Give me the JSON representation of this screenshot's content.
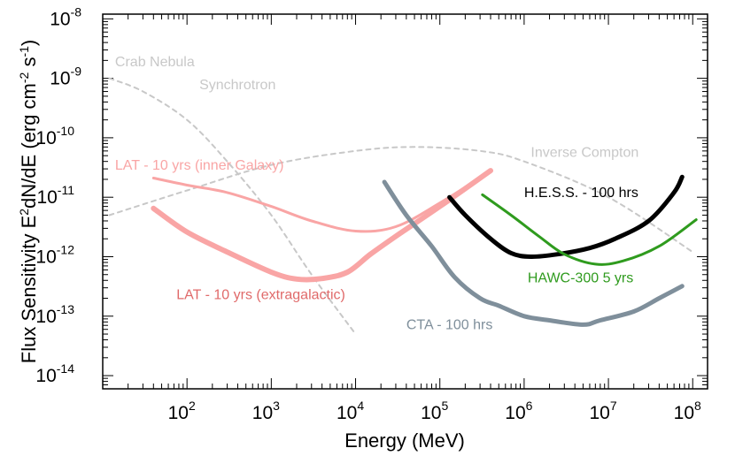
{
  "chart_data": {
    "type": "line",
    "title": "",
    "xlabel": "Energy (MeV)",
    "ylabel": {
      "base": "Flux Sensitivity E",
      "sup": "2",
      "rest": "dN/dE (erg cm",
      "sup2": "-2",
      "rest2": " s",
      "sup3": "-1",
      "end": ")"
    },
    "x_scale": "log",
    "y_scale": "log",
    "xlim": [
      10,
      150000000
    ],
    "ylim": [
      6e-15,
      1.2e-08
    ],
    "x_ticks": [
      {
        "value": 100,
        "base": "10",
        "exp": "2"
      },
      {
        "value": 1000,
        "base": "10",
        "exp": "3"
      },
      {
        "value": 10000,
        "base": "10",
        "exp": "4"
      },
      {
        "value": 100000,
        "base": "10",
        "exp": "5"
      },
      {
        "value": 1000000,
        "base": "10",
        "exp": "6"
      },
      {
        "value": 10000000,
        "base": "10",
        "exp": "7"
      },
      {
        "value": 100000000,
        "base": "10",
        "exp": "8"
      }
    ],
    "y_ticks": [
      {
        "value": 1e-08,
        "base": "10",
        "exp": "-8"
      },
      {
        "value": 1e-09,
        "base": "10",
        "exp": "-9"
      },
      {
        "value": 1e-10,
        "base": "10",
        "exp": "-10"
      },
      {
        "value": 1e-11,
        "base": "10",
        "exp": "-11"
      },
      {
        "value": 1e-12,
        "base": "10",
        "exp": "-12"
      },
      {
        "value": 1e-13,
        "base": "10",
        "exp": "-13"
      },
      {
        "value": 1e-14,
        "base": "10",
        "exp": "-14"
      }
    ],
    "grid": false,
    "series": [
      {
        "name": "Crab Nebula Synchrotron",
        "color": "#c8c8c8",
        "style": "dashed",
        "width": 2,
        "x": [
          12,
          30,
          100,
          300,
          1000,
          3000,
          10000
        ],
        "y": [
          1e-09,
          6e-10,
          2e-10,
          4e-11,
          5e-12,
          5e-13,
          5e-14
        ]
      },
      {
        "name": "Inverse Compton",
        "color": "#c8c8c8",
        "style": "dashed",
        "width": 2,
        "x": [
          12,
          100,
          1000,
          10000,
          50000,
          300000,
          1000000,
          10000000,
          100000000
        ],
        "y": [
          5e-12,
          1.3e-11,
          3.5e-11,
          6e-11,
          7e-11,
          6e-11,
          4e-11,
          1e-11,
          1.2e-12
        ]
      },
      {
        "name": "LAT - 10 yrs (inner Galaxy)",
        "color": "#f9a5a5",
        "style": "solid",
        "width": 3,
        "x": [
          40,
          100,
          300,
          1000,
          3000,
          10000,
          30000,
          100000,
          400000
        ],
        "y": [
          2.1e-11,
          1.6e-11,
          1.2e-11,
          7e-12,
          4e-12,
          2.7e-12,
          3.2e-12,
          8e-12,
          2.8e-11
        ]
      },
      {
        "name": "LAT - 10 yrs (extragalactic)",
        "color": "#f9a5a5",
        "style": "solid",
        "width": 6,
        "x": [
          40,
          100,
          300,
          1000,
          2000,
          4000,
          8000,
          15000,
          30000,
          100000,
          400000
        ],
        "y": [
          6.5e-12,
          2.6e-12,
          1.2e-12,
          5.5e-13,
          4.2e-13,
          4.3e-13,
          5.5e-13,
          1.1e-12,
          2.2e-12,
          7e-12,
          2.8e-11
        ]
      },
      {
        "name": "CTA - 100 hrs",
        "color": "#7f8f9b",
        "style": "solid",
        "width": 5,
        "x": [
          22000,
          40000,
          80000,
          150000,
          300000,
          500000,
          1000000,
          2000000,
          5000000,
          8000000,
          20000000,
          40000000,
          75000000
        ],
        "y": [
          1.8e-11,
          5e-12,
          1.5e-12,
          4.5e-13,
          2e-13,
          1.5e-13,
          1e-13,
          8.5e-14,
          7.2e-14,
          8.5e-14,
          1.2e-13,
          2e-13,
          3.2e-13
        ]
      },
      {
        "name": "H.E.S.S. - 100 hrs",
        "color": "#000000",
        "style": "solid",
        "width": 5,
        "x": [
          130000,
          200000,
          400000,
          700000,
          1200000,
          2500000,
          6000000,
          12000000,
          30000000,
          60000000,
          75000000
        ],
        "y": [
          1e-11,
          5e-12,
          2e-12,
          1.15e-12,
          1e-12,
          1.1e-12,
          1.4e-12,
          2e-12,
          4e-12,
          1.2e-11,
          2.2e-11
        ]
      },
      {
        "name": "HAWC-300 5 yrs",
        "color": "#2f9b1e",
        "style": "solid",
        "width": 3,
        "x": [
          320000,
          700000,
          1500000,
          3000000,
          7000000,
          15000000,
          40000000,
          110000000
        ],
        "y": [
          1.1e-11,
          5e-12,
          2.2e-12,
          1.1e-12,
          7.5e-13,
          8.5e-13,
          1.5e-12,
          4.2e-12
        ]
      }
    ],
    "annotations": [
      {
        "text": "Crab Nebula",
        "color": "#c8c8c8",
        "x": 14,
        "y": 1.6e-09
      },
      {
        "text": "Synchrotron",
        "color": "#c8c8c8",
        "x": 140,
        "y": 6.5e-10
      },
      {
        "text": "Inverse Compton",
        "color": "#c8c8c8",
        "x": 1200000,
        "y": 4.8e-11
      },
      {
        "text": "LAT - 10 yrs (inner Galaxy)",
        "color": "#f9a5a5",
        "x": 14,
        "y": 2.9e-11
      },
      {
        "text": "LAT - 10 yrs (extragalactic)",
        "color": "#e06a6a",
        "x": 75,
        "y": 1.95e-13
      },
      {
        "text": "CTA - 100 hrs",
        "color": "#7f8f9b",
        "x": 40000,
        "y": 6e-14
      },
      {
        "text": "H.E.S.S. - 100 hrs",
        "color": "#000000",
        "x": 1000000,
        "y": 1e-11
      },
      {
        "text": "HAWC-300 5 yrs",
        "color": "#2f9b1e",
        "x": 1100000,
        "y": 3.7e-13
      }
    ]
  }
}
